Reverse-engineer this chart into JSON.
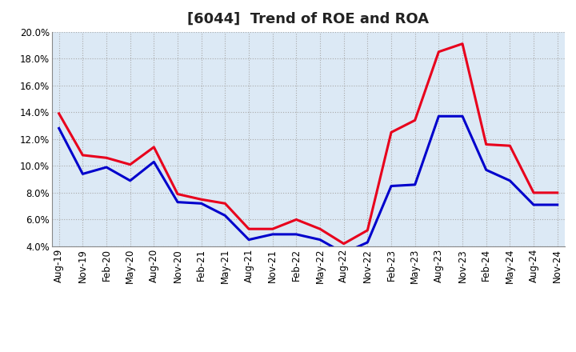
{
  "title": "[6044]  Trend of ROE and ROA",
  "x_labels": [
    "Aug-19",
    "Nov-19",
    "Feb-20",
    "May-20",
    "Aug-20",
    "Nov-20",
    "Feb-21",
    "May-21",
    "Aug-21",
    "Nov-21",
    "Feb-22",
    "May-22",
    "Aug-22",
    "Nov-22",
    "Feb-23",
    "May-23",
    "Aug-23",
    "Nov-23",
    "Feb-24",
    "May-24",
    "Aug-24",
    "Nov-24"
  ],
  "roe": [
    13.9,
    10.8,
    10.6,
    10.1,
    11.4,
    7.9,
    7.5,
    7.2,
    5.3,
    5.3,
    6.0,
    5.3,
    4.2,
    5.2,
    12.5,
    13.4,
    18.5,
    19.1,
    11.6,
    11.5,
    8.0,
    8.0
  ],
  "roa": [
    12.8,
    9.4,
    9.9,
    8.9,
    10.3,
    7.3,
    7.2,
    6.3,
    4.5,
    4.9,
    4.9,
    4.5,
    3.5,
    4.3,
    8.5,
    8.6,
    13.7,
    13.7,
    9.7,
    8.9,
    7.1,
    7.1
  ],
  "roe_color": "#e8001c",
  "roa_color": "#0000cc",
  "ylim": [
    4.0,
    20.0
  ],
  "yticks": [
    4.0,
    6.0,
    8.0,
    10.0,
    12.0,
    14.0,
    16.0,
    18.0,
    20.0
  ],
  "background_color": "#ffffff",
  "plot_bg_color": "#dce9f5",
  "grid_color": "#aaaaaa",
  "title_fontsize": 13,
  "axis_fontsize": 8.5,
  "legend_fontsize": 10,
  "line_width": 2.2
}
